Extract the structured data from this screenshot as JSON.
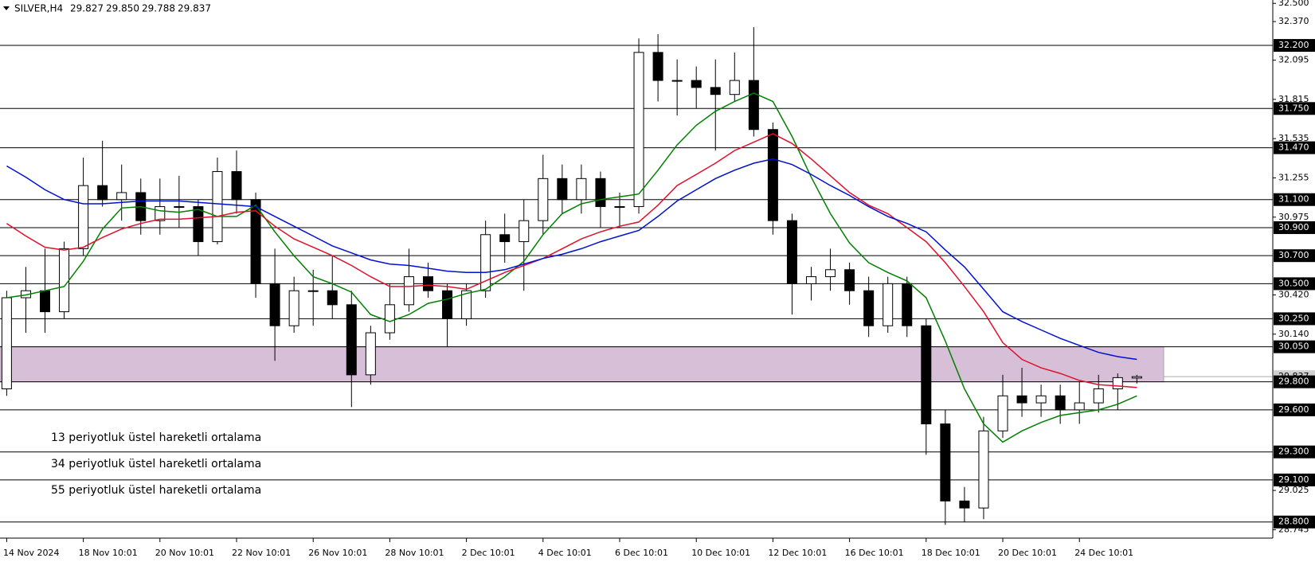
{
  "chart_data": {
    "type": "candlestick",
    "symbol": "SILVER,H4",
    "quote": [
      "29.827",
      "29.850",
      "29.788",
      "29.837"
    ],
    "categories": [
      "14 Nov 2024",
      null,
      null,
      null,
      "18 Nov 10:01",
      null,
      null,
      null,
      "20 Nov 10:01",
      null,
      null,
      null,
      "22 Nov 10:01",
      null,
      null,
      null,
      "26 Nov 10:01",
      null,
      null,
      null,
      "28 Nov 10:01",
      null,
      null,
      null,
      "2 Dec 10:01",
      null,
      null,
      null,
      "4 Dec 10:01",
      null,
      null,
      null,
      "6 Dec 10:01",
      null,
      null,
      null,
      "10 Dec 10:01",
      null,
      null,
      null,
      "12 Dec 10:01",
      null,
      null,
      null,
      "16 Dec 10:01",
      null,
      null,
      null,
      "18 Dec 10:01",
      null,
      null,
      null,
      "20 Dec 10:01",
      null,
      null,
      null,
      "24 Dec 10:01",
      null,
      null,
      null
    ],
    "open": [
      29.75,
      30.4,
      30.45,
      30.3,
      30.75,
      31.2,
      31.1,
      31.15,
      30.95,
      31.05,
      31.05,
      30.8,
      31.3,
      31.1,
      30.5,
      30.2,
      30.45,
      30.45,
      30.35,
      29.85,
      30.15,
      30.35,
      30.55,
      30.45,
      30.25,
      30.45,
      30.85,
      30.8,
      30.95,
      31.25,
      31.1,
      31.25,
      31.05,
      31.05,
      32.15,
      31.95,
      31.95,
      31.9,
      31.85,
      31.95,
      31.6,
      30.95,
      30.5,
      30.55,
      30.6,
      30.45,
      30.2,
      30.5,
      30.2,
      29.5,
      28.95,
      28.9,
      29.45,
      29.7,
      29.65,
      29.7,
      29.6,
      29.65,
      29.75,
      29.827
    ],
    "high": [
      30.45,
      30.62,
      30.75,
      30.8,
      31.4,
      31.52,
      31.35,
      31.25,
      31.25,
      31.27,
      31.1,
      31.4,
      31.45,
      31.15,
      30.75,
      30.55,
      30.6,
      30.7,
      30.45,
      30.2,
      30.5,
      30.75,
      30.65,
      30.5,
      30.5,
      30.95,
      31.0,
      31.1,
      31.42,
      31.35,
      31.35,
      31.3,
      31.15,
      32.25,
      32.28,
      32.1,
      32.05,
      32.1,
      32.15,
      32.33,
      31.65,
      31.0,
      30.62,
      30.75,
      30.65,
      30.55,
      30.55,
      30.55,
      30.25,
      29.6,
      29.05,
      29.55,
      29.85,
      29.9,
      29.78,
      29.78,
      29.8,
      29.85,
      29.86,
      29.85
    ],
    "low": [
      29.7,
      30.15,
      30.15,
      30.25,
      30.7,
      31.05,
      30.95,
      30.85,
      30.85,
      30.9,
      30.7,
      30.78,
      31.0,
      30.4,
      29.95,
      30.15,
      30.2,
      30.25,
      29.62,
      29.78,
      30.1,
      30.3,
      30.4,
      30.05,
      30.2,
      30.4,
      30.65,
      30.45,
      30.85,
      31.0,
      31.0,
      30.9,
      30.9,
      31.0,
      31.8,
      31.7,
      31.75,
      31.45,
      31.8,
      31.55,
      30.85,
      30.28,
      30.38,
      30.45,
      30.35,
      30.12,
      30.15,
      30.12,
      29.28,
      28.78,
      28.8,
      28.82,
      29.4,
      29.55,
      29.55,
      29.5,
      29.5,
      29.58,
      29.6,
      29.788
    ],
    "close": [
      30.4,
      30.45,
      30.3,
      30.75,
      31.2,
      31.1,
      31.15,
      30.95,
      31.05,
      31.05,
      30.8,
      31.3,
      31.1,
      30.5,
      30.2,
      30.45,
      30.45,
      30.35,
      29.85,
      30.15,
      30.35,
      30.55,
      30.45,
      30.25,
      30.45,
      30.85,
      30.8,
      30.95,
      31.25,
      31.1,
      31.25,
      31.05,
      31.05,
      32.15,
      31.95,
      31.95,
      31.9,
      31.85,
      31.95,
      31.6,
      30.95,
      30.5,
      30.55,
      30.6,
      30.45,
      30.2,
      30.5,
      30.2,
      29.5,
      28.95,
      28.9,
      29.45,
      29.7,
      29.65,
      29.7,
      29.6,
      29.65,
      29.75,
      29.83,
      29.837
    ],
    "series": [
      {
        "name": "13 periyotluk üstel hareketli ortalama",
        "color": "#008000",
        "values": [
          30.4,
          30.42,
          30.45,
          30.48,
          30.66,
          30.89,
          31.04,
          31.05,
          31.02,
          31.01,
          31.03,
          30.98,
          30.98,
          31.06,
          30.87,
          30.7,
          30.55,
          30.5,
          30.44,
          30.28,
          30.23,
          30.28,
          30.36,
          30.39,
          30.43,
          30.46,
          30.55,
          30.66,
          30.85,
          31.0,
          31.07,
          31.1,
          31.12,
          31.14,
          31.31,
          31.49,
          31.63,
          31.73,
          31.8,
          31.86,
          31.8,
          31.55,
          31.26,
          31.0,
          30.79,
          30.65,
          30.58,
          30.52,
          30.4,
          30.09,
          29.75,
          29.5,
          29.37,
          29.45,
          29.51,
          29.56,
          29.58,
          29.6,
          29.64,
          29.7
        ]
      },
      {
        "name": "34 periyotluk üstel hareketli ortalama",
        "color": "#e0102c",
        "values": [
          30.93,
          30.84,
          30.76,
          30.74,
          30.76,
          30.83,
          30.89,
          30.93,
          30.96,
          30.96,
          30.97,
          30.98,
          31.01,
          31.02,
          30.91,
          30.82,
          30.76,
          30.7,
          30.63,
          30.55,
          30.48,
          30.48,
          30.49,
          30.48,
          30.46,
          30.52,
          30.58,
          30.63,
          30.68,
          30.75,
          30.82,
          30.87,
          30.91,
          30.94,
          31.06,
          31.2,
          31.28,
          31.36,
          31.45,
          31.51,
          31.57,
          31.5,
          31.39,
          31.27,
          31.15,
          31.06,
          31.0,
          30.9,
          30.8,
          30.65,
          30.48,
          30.3,
          30.08,
          29.96,
          29.9,
          29.86,
          29.81,
          29.78,
          29.77,
          29.76
        ]
      },
      {
        "name": "55 periyotluk üstel hareketli ortalama",
        "color": "#0010d0",
        "values": [
          31.34,
          31.26,
          31.17,
          31.1,
          31.07,
          31.07,
          31.08,
          31.09,
          31.09,
          31.09,
          31.08,
          31.07,
          31.06,
          31.05,
          30.98,
          30.91,
          30.84,
          30.77,
          30.72,
          30.67,
          30.64,
          30.63,
          30.61,
          30.59,
          30.58,
          30.58,
          30.6,
          30.64,
          30.68,
          30.71,
          30.75,
          30.8,
          30.84,
          30.88,
          30.98,
          31.09,
          31.17,
          31.25,
          31.31,
          31.36,
          31.39,
          31.35,
          31.28,
          31.2,
          31.13,
          31.05,
          30.98,
          30.93,
          30.87,
          30.74,
          30.62,
          30.46,
          30.3,
          30.23,
          30.17,
          30.11,
          30.06,
          30.01,
          29.98,
          29.96
        ]
      }
    ],
    "zone": {
      "from": 29.8,
      "to": 30.05,
      "color": "#d8bfd8"
    },
    "ylim": [
      28.685,
      32.524
    ],
    "yticks": [
      {
        "value": 32.5,
        "label": "32.500"
      },
      {
        "value": 32.37,
        "label": "32.370"
      },
      {
        "value": 32.095,
        "label": "32.095"
      },
      {
        "value": 31.815,
        "label": "31.815"
      },
      {
        "value": 31.535,
        "label": "31.535"
      },
      {
        "value": 31.255,
        "label": "31.255"
      },
      {
        "value": 30.975,
        "label": "30.975"
      },
      {
        "value": 30.42,
        "label": "30.420"
      },
      {
        "value": 30.14,
        "label": "30.140"
      },
      {
        "value": 29.025,
        "label": "29.025"
      },
      {
        "value": 28.745,
        "label": "28.745"
      }
    ],
    "levels": [
      {
        "value": 32.2,
        "label": "32.200"
      },
      {
        "value": 31.75,
        "label": "31.750"
      },
      {
        "value": 31.47,
        "label": "31.470"
      },
      {
        "value": 31.1,
        "label": "31.100"
      },
      {
        "value": 30.9,
        "label": "30.900"
      },
      {
        "value": 30.7,
        "label": "30.700"
      },
      {
        "value": 30.5,
        "label": "30.500"
      },
      {
        "value": 30.25,
        "label": "30.250"
      },
      {
        "value": 30.05,
        "label": "30.050"
      },
      {
        "value": 29.8,
        "label": "29.800"
      },
      {
        "value": 29.6,
        "label": "29.600"
      },
      {
        "value": 29.3,
        "label": "29.300"
      },
      {
        "value": 29.1,
        "label": "29.100"
      },
      {
        "value": 28.8,
        "label": "28.800"
      }
    ],
    "last_price": {
      "value": 29.837,
      "label": "29.837"
    }
  }
}
